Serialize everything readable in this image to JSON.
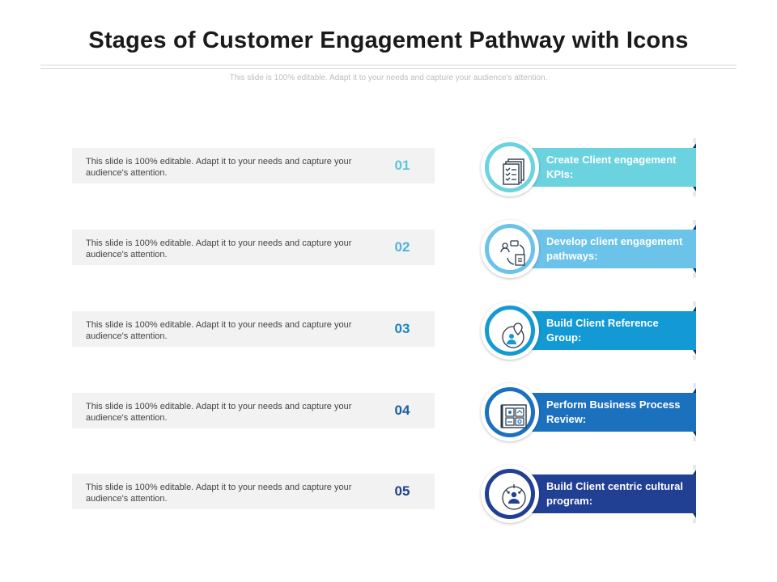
{
  "page": {
    "title": "Stages of Customer Engagement Pathway with Icons",
    "subtitle": "This slide is 100% editable. Adapt it to your needs and capture your audience's attention."
  },
  "rows": [
    {
      "text": "This slide is 100% editable. Adapt it to your needs and capture your audience's attention.",
      "number": "01",
      "color": "#5bc8d8"
    },
    {
      "text": "This slide is 100% editable. Adapt it to your needs and capture your audience's attention.",
      "number": "02",
      "color": "#4fb3e0"
    },
    {
      "text": "This slide is 100% editable. Adapt it to your needs and capture your audience's attention.",
      "number": "03",
      "color": "#1b86c4"
    },
    {
      "text": "This slide is 100% editable. Adapt it to your needs and capture your audience's attention.",
      "number": "04",
      "color": "#1b5ea6"
    },
    {
      "text": "This slide is 100% editable. Adapt it to your needs and capture your audience's attention.",
      "number": "05",
      "color": "#1f3f8f"
    }
  ],
  "steps": [
    {
      "label": "Create Client engagement KPIs:",
      "color": "#6bd3df",
      "icon": "checklist-icon"
    },
    {
      "label": "Develop client engagement pathways:",
      "color": "#6cc3ea",
      "icon": "pathway-icon"
    },
    {
      "label": "Build Client Reference Group:",
      "color": "#139ad4",
      "icon": "reference-group-icon"
    },
    {
      "label": "Perform Business Process Review:",
      "color": "#1c71bf",
      "icon": "process-review-icon"
    },
    {
      "label": "Build Client centric cultural program:",
      "color": "#213f93",
      "icon": "client-centric-icon"
    }
  ]
}
